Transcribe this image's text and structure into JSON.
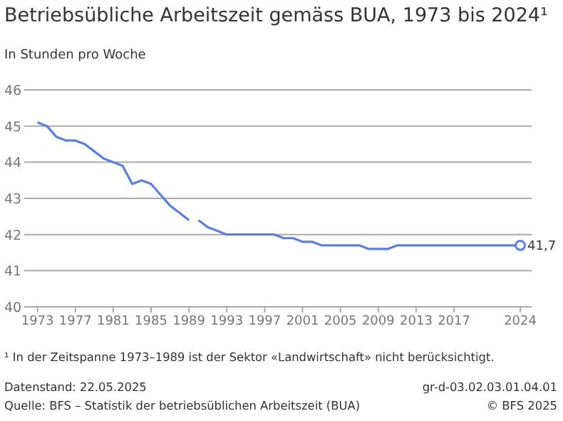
{
  "chart_data": {
    "type": "line",
    "title": "Betriebsübliche Arbeitszeit gemäss BUA, 1973 bis 2024¹",
    "ylabel": "In Stunden pro Woche",
    "series": [
      {
        "color": "#5b7fdb",
        "x": [
          1973,
          1974,
          1975,
          1976,
          1977,
          1978,
          1979,
          1980,
          1981,
          1982,
          1983,
          1984,
          1985,
          1986,
          1987,
          1988,
          1989
        ],
        "values": [
          45.1,
          45.0,
          44.7,
          44.6,
          44.6,
          44.5,
          44.3,
          44.1,
          44.0,
          43.9,
          43.4,
          43.5,
          43.4,
          43.1,
          42.8,
          42.6,
          42.4
        ]
      },
      {
        "color": "#5b7fdb",
        "x": [
          1990,
          1991,
          1992,
          1993,
          1994,
          1995,
          1996,
          1997,
          1998,
          1999,
          2000,
          2001,
          2002,
          2003,
          2004,
          2005,
          2006,
          2007,
          2008,
          2009,
          2010,
          2011,
          2012,
          2013,
          2014,
          2015,
          2016,
          2017,
          2018,
          2019,
          2020,
          2021,
          2022,
          2023,
          2024
        ],
        "values": [
          42.4,
          42.2,
          42.1,
          42.0,
          42.0,
          42.0,
          42.0,
          42.0,
          42.0,
          41.9,
          41.9,
          41.8,
          41.8,
          41.7,
          41.7,
          41.7,
          41.7,
          41.7,
          41.6,
          41.6,
          41.6,
          41.7,
          41.7,
          41.7,
          41.7,
          41.7,
          41.7,
          41.7,
          41.7,
          41.7,
          41.7,
          41.7,
          41.7,
          41.7,
          41.7
        ],
        "value_labels": [
          null,
          null,
          null,
          null,
          null,
          null,
          null,
          null,
          null,
          null,
          null,
          null,
          null,
          null,
          null,
          null,
          null,
          null,
          null,
          null,
          null,
          null,
          null,
          null,
          null,
          null,
          null,
          null,
          null,
          null,
          null,
          null,
          null,
          null,
          "41,7"
        ]
      }
    ],
    "xlim": [
      1971.6,
      2025.2
    ],
    "xticks": [
      1973,
      1977,
      1981,
      1985,
      1989,
      1993,
      1997,
      2001,
      2005,
      2009,
      2013,
      2017,
      2024
    ],
    "ylim": [
      40,
      46
    ],
    "yticks": [
      40,
      41,
      42,
      43,
      44,
      45,
      46
    ],
    "grid": "y",
    "marker": "none",
    "legend": false,
    "annotations": [
      "¹ In der Zeitspanne 1973–1989 ist der Sektor «Landwirtschaft» nicht berücksichtigt.",
      "Datenstand: 22.05.2025",
      "Quelle: BFS – Statistik der betriebsüblichen Arbeitszeit (BUA)",
      "gr-d-03.02.03.01.04.01",
      "© BFS 2025"
    ]
  }
}
